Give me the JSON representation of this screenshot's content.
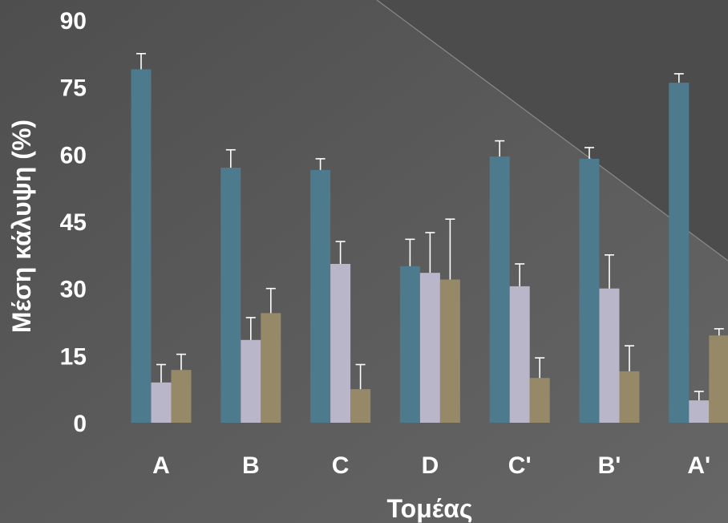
{
  "chart_data": {
    "type": "bar",
    "title": "",
    "xlabel": "Τομέας",
    "ylabel": "Μέση κάλυψη (%)",
    "ylim": [
      0,
      90
    ],
    "yticks": [
      0,
      15,
      30,
      45,
      60,
      75,
      90
    ],
    "grid": false,
    "legend": "none",
    "categories": [
      "A",
      "B",
      "C",
      "D",
      "C'",
      "B'",
      "A'"
    ],
    "series": [
      {
        "color": "#4d7a8c",
        "values": [
          79,
          57,
          56.5,
          35,
          59.5,
          59,
          76
        ],
        "errors": [
          3.5,
          4,
          2.5,
          6,
          3.5,
          2.5,
          2
        ]
      },
      {
        "color": "#b9b6c9",
        "values": [
          9,
          18.5,
          35.5,
          33.5,
          30.5,
          30,
          5
        ],
        "errors": [
          4,
          5,
          5,
          9,
          5,
          7.5,
          2
        ]
      },
      {
        "color": "#968968",
        "values": [
          11.8,
          24.5,
          7.5,
          32,
          10,
          11.5,
          19.5
        ],
        "errors": [
          3.5,
          5.5,
          5.5,
          13.5,
          4.5,
          5.7,
          1.5
        ]
      }
    ]
  }
}
